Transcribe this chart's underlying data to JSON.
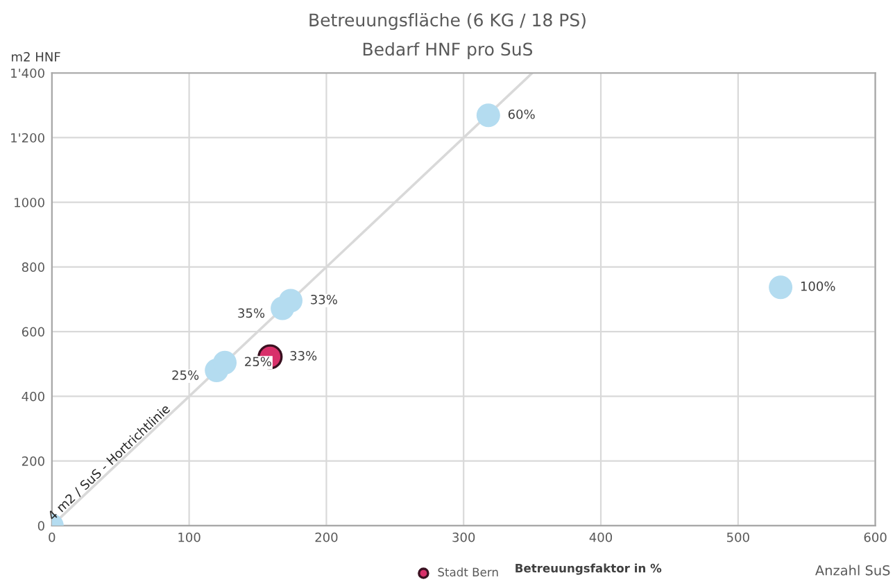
{
  "chart_data": {
    "type": "scatter",
    "title": "Betreuungsfläche (6 KG / 18 PS)",
    "subtitle": "Bedarf HNF pro SuS",
    "xlabel": "Anzahl SuS",
    "ylabel": "m2 HNF",
    "series": [
      {
        "type": "line",
        "color": "#d9d9d9",
        "x": [
          0,
          350
        ],
        "values": [
          0,
          1400
        ],
        "marker": "none"
      },
      {
        "color": "#b4dcf0",
        "x": [
          0,
          120,
          126,
          168,
          174,
          318,
          531
        ],
        "values": [
          0,
          480,
          504,
          672,
          696,
          1269,
          737
        ]
      },
      {
        "name": "Stadt Bern",
        "color": "#d8306a",
        "x": [
          159
        ],
        "values": [
          522
        ]
      }
    ],
    "annotations": [
      {
        "text": "4 m2 / SuS - Hortrichtlinie",
        "x": 45,
        "y": 180
      },
      {
        "text": "25%",
        "x": 120,
        "y": 480
      },
      {
        "text": "25%",
        "x": 126,
        "y": 504
      },
      {
        "text": "35%",
        "x": 168,
        "y": 672
      },
      {
        "text": "33%",
        "x": 174,
        "y": 696
      },
      {
        "text": "60%",
        "x": 318,
        "y": 1269
      },
      {
        "text": "100%",
        "x": 531,
        "y": 737
      },
      {
        "text": "33%",
        "x": 159,
        "y": 522
      },
      "Betreuungsfaktor in %"
    ],
    "xlim": [
      0,
      600
    ],
    "xticks": [
      0,
      100,
      200,
      300,
      400,
      500,
      600
    ],
    "ylim": [
      0,
      1400
    ],
    "yticks": [
      0,
      200,
      400,
      600,
      800,
      1000,
      {
        "value": 1200,
        "label": "1'200"
      },
      {
        "value": 1400,
        "label": "1'400"
      }
    ],
    "grid": true,
    "marker": "circle",
    "legend": "bottom"
  }
}
